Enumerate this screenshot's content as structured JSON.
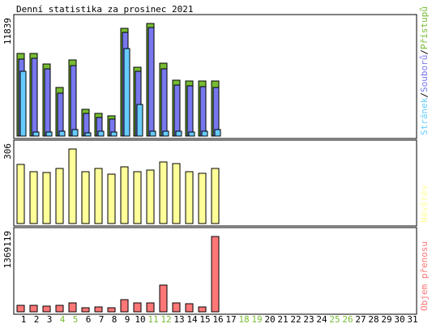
{
  "chart_data": {
    "title": "Denní statistika za prosinec 2021",
    "type": "bar",
    "categories": [
      "1",
      "2",
      "3",
      "4",
      "5",
      "6",
      "7",
      "8",
      "9",
      "10",
      "11",
      "12",
      "13",
      "14",
      "15",
      "16",
      "17",
      "18",
      "19",
      "20",
      "21",
      "22",
      "23",
      "24",
      "25",
      "26",
      "27",
      "28",
      "29",
      "30",
      "31"
    ],
    "weekend_days": [
      "4",
      "5",
      "11",
      "12",
      "18",
      "19",
      "25",
      "26"
    ],
    "colors": {
      "pristupu": "#77bb33",
      "souboru": "#7777ee",
      "stranek": "#66ccff",
      "navstev": "#ffff99",
      "objem": "#ff7777",
      "weekend_label": "#77bb33",
      "day_label": "#000000",
      "frame": "#000000",
      "background": "#ffffff"
    },
    "panels": [
      {
        "id": "traffic",
        "max_label": "11839",
        "ylim": [
          0,
          11839
        ],
        "legend": [
          {
            "text": "Stránek",
            "color": "#66ccff"
          },
          {
            "text": "/",
            "color": "#000000"
          },
          {
            "text": "Souborů",
            "color": "#7777ee"
          },
          {
            "text": "/",
            "color": "#000000"
          },
          {
            "text": "Přístupů",
            "color": "#77bb33"
          }
        ],
        "series": [
          {
            "name": "Přístupů",
            "color": "#77bb33",
            "values": [
              8700,
              8700,
              7600,
              5100,
              8000,
              2800,
              2400,
              2100,
              11300,
              7200,
              11839,
              7700,
              5900,
              5800,
              5800,
              5800,
              0,
              0,
              0,
              0,
              0,
              0,
              0,
              0,
              0,
              0,
              0,
              0,
              0,
              0,
              0
            ]
          },
          {
            "name": "Souborů",
            "color": "#7777ee",
            "values": [
              8100,
              8200,
              7100,
              4500,
              7400,
              2400,
              2000,
              1800,
              10900,
              6800,
              11400,
              7100,
              5400,
              5300,
              5200,
              5100,
              0,
              0,
              0,
              0,
              0,
              0,
              0,
              0,
              0,
              0,
              0,
              0,
              0,
              0,
              0
            ]
          },
          {
            "name": "Stránek",
            "color": "#66ccff",
            "values": [
              6800,
              400,
              400,
              500,
              700,
              300,
              500,
              400,
              9200,
              3300,
              500,
              500,
              500,
              400,
              500,
              700,
              0,
              0,
              0,
              0,
              0,
              0,
              0,
              0,
              0,
              0,
              0,
              0,
              0,
              0,
              0
            ]
          }
        ]
      },
      {
        "id": "visits",
        "max_label": "306",
        "ylim": [
          0,
          306
        ],
        "legend": [
          {
            "text": "Návštěv",
            "color": "#ffff99"
          }
        ],
        "series": [
          {
            "name": "Návštěv",
            "color": "#ffff99",
            "values": [
              242,
              212,
              209,
              226,
              306,
              213,
              226,
              204,
              232,
              212,
              219,
              253,
              247,
              212,
              206,
              225,
              0,
              0,
              0,
              0,
              0,
              0,
              0,
              0,
              0,
              0,
              0,
              0,
              0,
              0,
              0
            ]
          }
        ]
      },
      {
        "id": "volume",
        "max_label": "1369119",
        "ylim": [
          0,
          1369119
        ],
        "legend": [
          {
            "text": "Objem přenosu",
            "color": "#ff7777"
          }
        ],
        "series": [
          {
            "name": "Objem přenosu",
            "color": "#ff7777",
            "values": [
              115000,
              120000,
              100000,
              115000,
              160000,
              70000,
              85000,
              75000,
              215000,
              155000,
              165000,
              490000,
              160000,
              150000,
              85000,
              1369119,
              0,
              0,
              0,
              0,
              0,
              0,
              0,
              0,
              0,
              0,
              0,
              0,
              0,
              0,
              0
            ]
          }
        ]
      }
    ]
  }
}
